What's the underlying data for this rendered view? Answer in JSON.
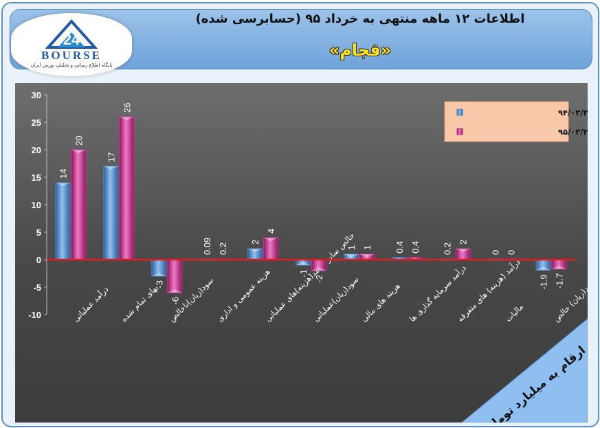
{
  "header": {
    "title": "اطلاعات ۱۲ ماهه منتهی به خرداد ۹۵ (حسابرسی شده)",
    "subtitle": "«قجام»",
    "logo_text": "BOURSE",
    "logo_tagline": "پایگاه اطلاع رسانی و تحلیلی بورس ایران"
  },
  "unit_note": "ارقام به میلیارد تومان",
  "colors": {
    "series1": "#4a86c8",
    "series2": "#cc2f8f",
    "zero_line": "#e01b1b",
    "legend_bg": "#f9c8a8"
  },
  "chart_data": {
    "type": "bar",
    "categories": [
      "درآمد عملیاتی",
      "بهای تمام شده",
      "سود(زیان)ناخالص",
      "هزینه عمومی و اداری",
      "خالص سایر درآمد(هزینه)های عملیاتی",
      "سود(زیان)عملیاتی",
      "هزینه های مالی",
      "درآمد سرمایه گذاری ها",
      "درآمد (هزینه) های متفرقه",
      "مالیات",
      "سود(زیان) خالص"
    ],
    "series": [
      {
        "name": "۱۲ ماهه منتهی به ۹۴/۰۳/۳۱",
        "values": [
          14,
          17,
          -3,
          0.09,
          2,
          -1,
          1,
          0.4,
          0.2,
          0,
          -1.9
        ]
      },
      {
        "name": "۱۲ ماهه منتهی به ۹۵/۰۳/۳۱",
        "values": [
          20,
          26,
          -6,
          0.2,
          4,
          -2,
          1,
          0.4,
          2,
          0,
          -1.7
        ]
      }
    ],
    "value_labels": [
      [
        "14",
        "17",
        "-3",
        "0.09",
        "2",
        "-1",
        "1",
        "0.4",
        "0.2",
        "0",
        "-1.9"
      ],
      [
        "20",
        "26",
        "-6",
        "0.2",
        "4",
        "-2",
        "1",
        "0.4",
        "2",
        "0",
        "-1.7"
      ]
    ],
    "ylim": [
      -10,
      30
    ],
    "yticks": [
      "30",
      "25",
      "20",
      "15",
      "10",
      "5",
      "0",
      "-5",
      "-10"
    ],
    "ytick_values": [
      30,
      25,
      20,
      15,
      10,
      5,
      0,
      -5,
      -10
    ],
    "grid": false,
    "legend_position": "top-right",
    "title": "",
    "xlabel": "",
    "ylabel": ""
  }
}
